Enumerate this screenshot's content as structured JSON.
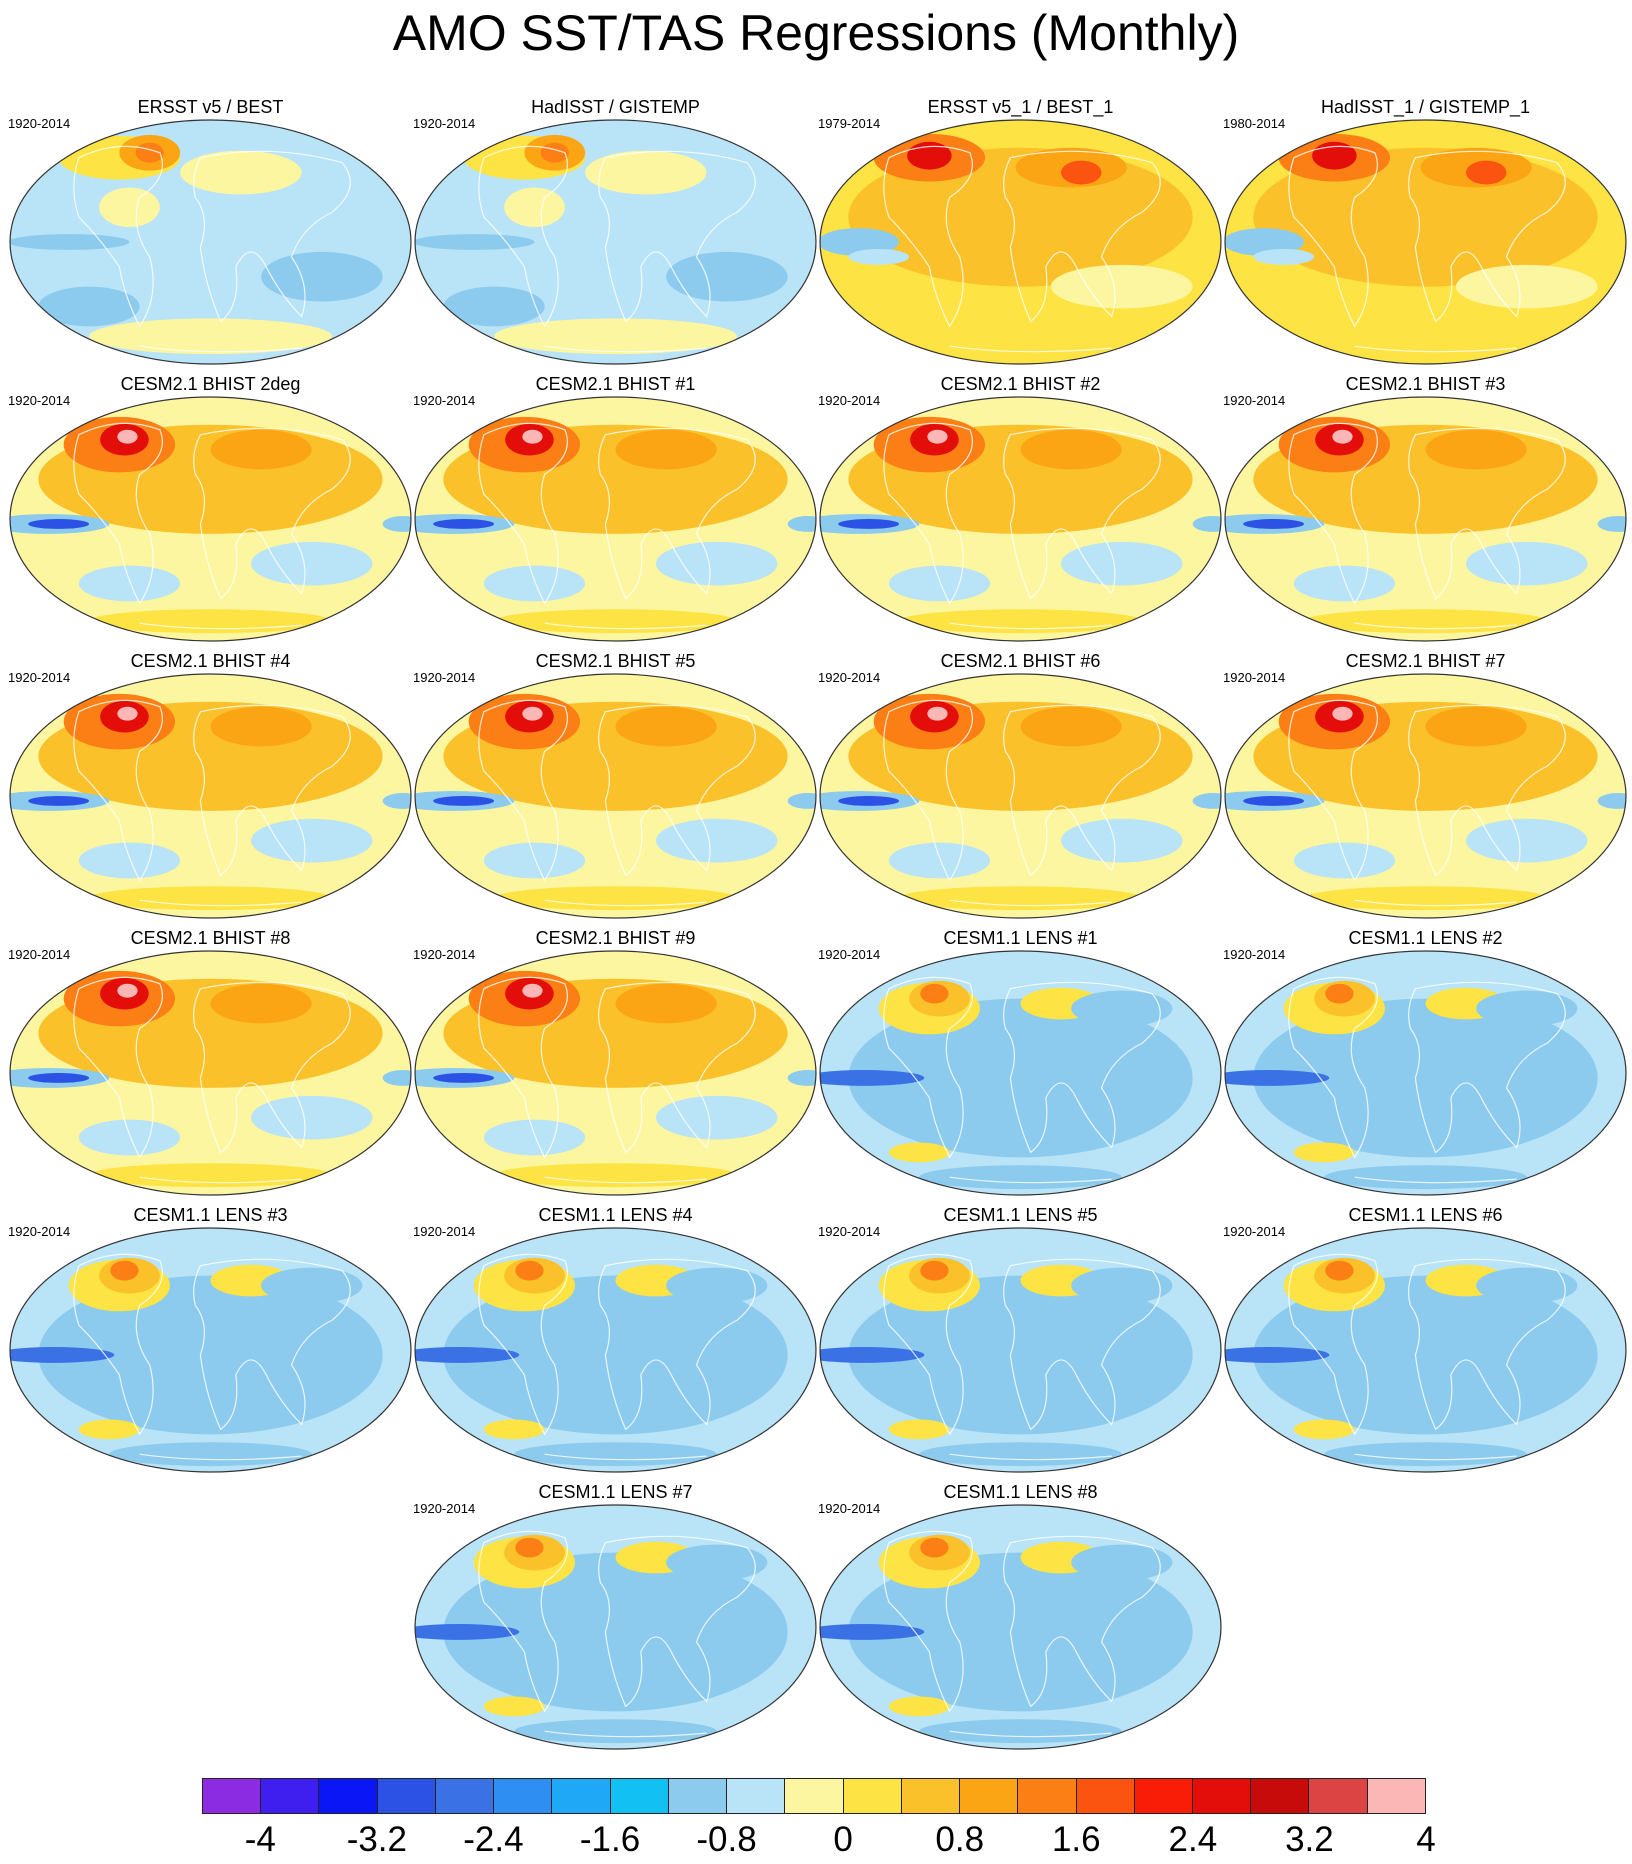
{
  "title": "AMO SST/TAS Regressions (Monthly)",
  "panels": [
    {
      "title": "ERSST v5 / BEST",
      "years": "1920-2014",
      "style": "obs"
    },
    {
      "title": "HadISST / GISTEMP",
      "years": "1920-2014",
      "style": "obs"
    },
    {
      "title": "ERSST v5_1 / BEST_1",
      "years": "1979-2014",
      "style": "obs-warm"
    },
    {
      "title": "HadISST_1 / GISTEMP_1",
      "years": "1980-2014",
      "style": "obs-warm"
    },
    {
      "title": "CESM2.1 BHIST 2deg",
      "years": "1920-2014",
      "style": "cesm2"
    },
    {
      "title": "CESM2.1 BHIST #1",
      "years": "1920-2014",
      "style": "cesm2"
    },
    {
      "title": "CESM2.1 BHIST #2",
      "years": "1920-2014",
      "style": "cesm2"
    },
    {
      "title": "CESM2.1 BHIST #3",
      "years": "1920-2014",
      "style": "cesm2"
    },
    {
      "title": "CESM2.1 BHIST #4",
      "years": "1920-2014",
      "style": "cesm2"
    },
    {
      "title": "CESM2.1 BHIST #5",
      "years": "1920-2014",
      "style": "cesm2"
    },
    {
      "title": "CESM2.1 BHIST #6",
      "years": "1920-2014",
      "style": "cesm2"
    },
    {
      "title": "CESM2.1 BHIST #7",
      "years": "1920-2014",
      "style": "cesm2"
    },
    {
      "title": "CESM2.1 BHIST #8",
      "years": "1920-2014",
      "style": "cesm2"
    },
    {
      "title": "CESM2.1 BHIST #9",
      "years": "1920-2014",
      "style": "cesm2"
    },
    {
      "title": "CESM1.1 LENS #1",
      "years": "1920-2014",
      "style": "cesm1"
    },
    {
      "title": "CESM1.1 LENS #2",
      "years": "1920-2014",
      "style": "cesm1"
    },
    {
      "title": "CESM1.1 LENS #3",
      "years": "1920-2014",
      "style": "cesm1"
    },
    {
      "title": "CESM1.1 LENS #4",
      "years": "1920-2014",
      "style": "cesm1"
    },
    {
      "title": "CESM1.1 LENS #5",
      "years": "1920-2014",
      "style": "cesm1"
    },
    {
      "title": "CESM1.1 LENS #6",
      "years": "1920-2014",
      "style": "cesm1"
    },
    {
      "title": "CESM1.1 LENS #7",
      "years": "1920-2014",
      "style": "cesm1"
    },
    {
      "title": "CESM1.1 LENS #8",
      "years": "1920-2014",
      "style": "cesm1"
    }
  ],
  "colorbar": {
    "colors": [
      "#8b2be2",
      "#3f1fef",
      "#0a16f5",
      "#2b52e4",
      "#3a72e6",
      "#2f8ef2",
      "#1ea8f5",
      "#13c0f3",
      "#8ccbee",
      "#b9e3f7",
      "#fdf6a0",
      "#fde343",
      "#fbc12b",
      "#fba514",
      "#fb7f14",
      "#fb5310",
      "#f91d08",
      "#e30d0a",
      "#c70a0a",
      "#dc4343",
      "#fbb6b6"
    ],
    "labels": [
      "-4",
      "-3.2",
      "-2.4",
      "-1.6",
      "-0.8",
      "0",
      "0.8",
      "1.6",
      "2.4",
      "3.2",
      "4"
    ]
  }
}
